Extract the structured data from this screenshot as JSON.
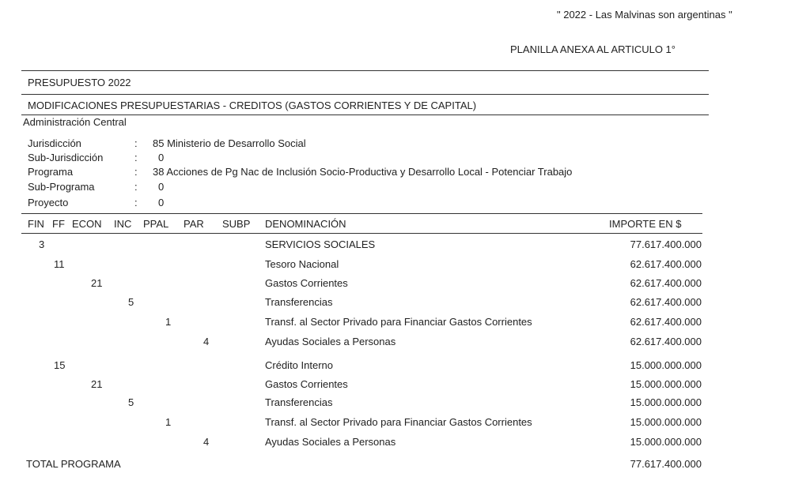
{
  "header": {
    "motto": "\" 2022 - Las Malvinas son argentinas \"",
    "annex": "PLANILLA ANEXA AL ARTICULO 1°",
    "budget": "PRESUPUESTO  2022",
    "subtitle": "MODIFICACIONES PRESUPUESTARIAS -  CREDITOS (GASTOS CORRIENTES Y DE CAPITAL)",
    "admin": "Administración Central"
  },
  "info": [
    {
      "label": "Jurisdicción",
      "sep": ":",
      "value": "85 Ministerio de Desarrollo Social"
    },
    {
      "label": "Sub-Jurisdicción",
      "sep": ":",
      "value": "0"
    },
    {
      "label": "Programa",
      "sep": ":",
      "value": "38 Acciones de Pg Nac de Inclusión Socio-Productiva y Desarrollo Local - Potenciar Trabajo"
    },
    {
      "label": "Sub-Programa",
      "sep": ":",
      "value": "0"
    },
    {
      "label": "Proyecto",
      "sep": ":",
      "value": "0"
    }
  ],
  "columns": {
    "fin": "FIN",
    "ff": "FF",
    "econ": "ECON",
    "inc": "INC",
    "ppal": "PPAL",
    "par": "PAR",
    "subp": "SUBP",
    "denominacion": "DENOMINACIÓN",
    "importe": "IMPORTE EN $"
  },
  "rows": [
    {
      "fin": "3",
      "ff": "",
      "econ": "",
      "inc": "",
      "ppal": "",
      "par": "",
      "denominacion": "SERVICIOS SOCIALES",
      "importe": "77.617.400.000"
    },
    {
      "fin": "",
      "ff": "11",
      "econ": "",
      "inc": "",
      "ppal": "",
      "par": "",
      "denominacion": "Tesoro Nacional",
      "importe": "62.617.400.000"
    },
    {
      "fin": "",
      "ff": "",
      "econ": "21",
      "inc": "",
      "ppal": "",
      "par": "",
      "denominacion": "Gastos Corrientes",
      "importe": "62.617.400.000"
    },
    {
      "fin": "",
      "ff": "",
      "econ": "",
      "inc": "5",
      "ppal": "",
      "par": "",
      "denominacion": "Transferencias",
      "importe": "62.617.400.000"
    },
    {
      "fin": "",
      "ff": "",
      "econ": "",
      "inc": "",
      "ppal": "1",
      "par": "",
      "denominacion": "Transf. al Sector Privado para Financiar Gastos Corrientes",
      "importe": "62.617.400.000"
    },
    {
      "fin": "",
      "ff": "",
      "econ": "",
      "inc": "",
      "ppal": "",
      "par": "4",
      "denominacion": "Ayudas Sociales a Personas",
      "importe": "62.617.400.000"
    },
    {
      "fin": "",
      "ff": "15",
      "econ": "",
      "inc": "",
      "ppal": "",
      "par": "",
      "denominacion": "Crédito Interno",
      "importe": "15.000.000.000"
    },
    {
      "fin": "",
      "ff": "",
      "econ": "21",
      "inc": "",
      "ppal": "",
      "par": "",
      "denominacion": "Gastos Corrientes",
      "importe": "15.000.000.000"
    },
    {
      "fin": "",
      "ff": "",
      "econ": "",
      "inc": "5",
      "ppal": "",
      "par": "",
      "denominacion": "Transferencias",
      "importe": "15.000.000.000"
    },
    {
      "fin": "",
      "ff": "",
      "econ": "",
      "inc": "",
      "ppal": "1",
      "par": "",
      "denominacion": "Transf. al Sector Privado para Financiar Gastos Corrientes",
      "importe": "15.000.000.000"
    },
    {
      "fin": "",
      "ff": "",
      "econ": "",
      "inc": "",
      "ppal": "",
      "par": "4",
      "denominacion": "Ayudas Sociales a Personas",
      "importe": "15.000.000.000"
    }
  ],
  "total": {
    "label": "TOTAL PROGRAMA",
    "importe": "77.617.400.000"
  }
}
